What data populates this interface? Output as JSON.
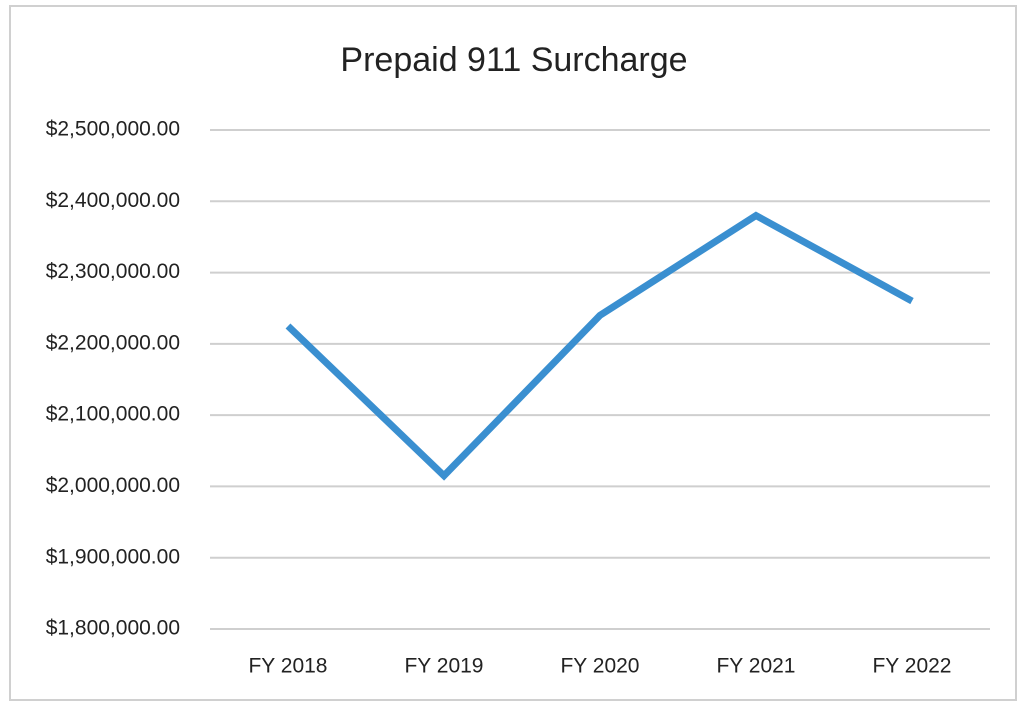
{
  "chart_data": {
    "type": "line",
    "title": "Prepaid 911 Surcharge",
    "categories": [
      "FY 2018",
      "FY 2019",
      "FY 2020",
      "FY 2021",
      "FY 2022"
    ],
    "values": [
      2225000,
      2015000,
      2240000,
      2380000,
      2260000
    ],
    "color": "#3a8fd0",
    "ylim": [
      1800000,
      2500000
    ],
    "yticks": [
      {
        "value": 1800000,
        "label": "$1,800,000.00"
      },
      {
        "value": 1900000,
        "label": "$1,900,000.00"
      },
      {
        "value": 2000000,
        "label": "$2,000,000.00"
      },
      {
        "value": 2100000,
        "label": "$2,100,000.00"
      },
      {
        "value": 2200000,
        "label": "$2,200,000.00"
      },
      {
        "value": 2300000,
        "label": "$2,300,000.00"
      },
      {
        "value": 2400000,
        "label": "$2,400,000.00"
      },
      {
        "value": 2500000,
        "label": "$2,500,000.00"
      }
    ],
    "grid": true
  }
}
